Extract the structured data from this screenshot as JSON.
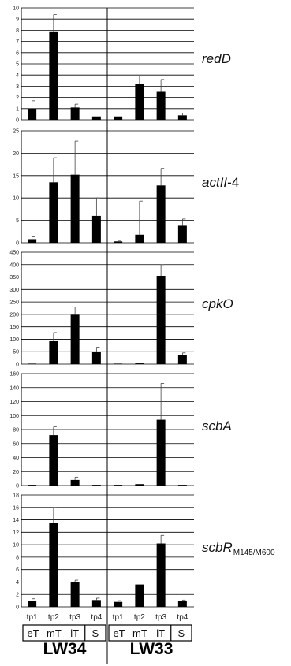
{
  "chart_data": [
    {
      "type": "bar",
      "gene": "redD",
      "ylim": [
        0,
        10
      ],
      "ystep": 1,
      "groups": [
        {
          "strain": "LW34",
          "categories": [
            "tp1",
            "tp2",
            "tp3",
            "tp4"
          ],
          "values": [
            1.0,
            7.9,
            1.1,
            0.3
          ],
          "errors": [
            0.7,
            1.5,
            0.3,
            0.0
          ]
        },
        {
          "strain": "LW33",
          "categories": [
            "tp1",
            "tp2",
            "tp3",
            "tp4"
          ],
          "values": [
            0.3,
            3.2,
            2.5,
            0.4
          ],
          "errors": [
            0.0,
            0.7,
            1.1,
            0.2
          ]
        }
      ]
    },
    {
      "type": "bar",
      "gene": "actII-4",
      "ylim": [
        0,
        25
      ],
      "ystep": 5,
      "groups": [
        {
          "strain": "LW34",
          "categories": [
            "tp1",
            "tp2",
            "tp3",
            "tp4"
          ],
          "values": [
            0.8,
            13.5,
            15.2,
            6.0
          ],
          "errors": [
            0.5,
            5.5,
            7.5,
            4.0
          ]
        },
        {
          "strain": "LW33",
          "categories": [
            "tp1",
            "tp2",
            "tp3",
            "tp4"
          ],
          "values": [
            0.3,
            1.8,
            12.8,
            3.8
          ],
          "errors": [
            0.2,
            7.5,
            3.8,
            1.5
          ]
        }
      ]
    },
    {
      "type": "bar",
      "gene": "cpkO",
      "ylim": [
        0,
        450
      ],
      "ystep": 50,
      "groups": [
        {
          "strain": "LW34",
          "categories": [
            "tp1",
            "tp2",
            "tp3",
            "tp4"
          ],
          "values": [
            2,
            92,
            198,
            50
          ],
          "errors": [
            0,
            35,
            32,
            18
          ]
        },
        {
          "strain": "LW33",
          "categories": [
            "tp1",
            "tp2",
            "tp3",
            "tp4"
          ],
          "values": [
            2,
            3,
            355,
            35
          ],
          "errors": [
            0,
            0,
            45,
            10
          ]
        }
      ]
    },
    {
      "type": "bar",
      "gene": "scbA",
      "ylim": [
        0,
        160
      ],
      "ystep": 20,
      "groups": [
        {
          "strain": "LW34",
          "categories": [
            "tp1",
            "tp2",
            "tp3",
            "tp4"
          ],
          "values": [
            1,
            72,
            8,
            1
          ],
          "errors": [
            0,
            12,
            4,
            0
          ]
        },
        {
          "strain": "LW33",
          "categories": [
            "tp1",
            "tp2",
            "tp3",
            "tp4"
          ],
          "values": [
            1,
            2,
            94,
            1
          ],
          "errors": [
            0,
            0,
            52,
            0
          ]
        }
      ]
    },
    {
      "type": "bar",
      "gene": "scbR",
      "gene_subscript": "M145/M600",
      "ylim": [
        0,
        18
      ],
      "ystep": 2,
      "groups": [
        {
          "strain": "LW34",
          "categories": [
            "tp1",
            "tp2",
            "tp3",
            "tp4"
          ],
          "values": [
            1.0,
            13.5,
            4.0,
            1.1
          ],
          "errors": [
            0.3,
            2.5,
            0.3,
            0.3
          ]
        },
        {
          "strain": "LW33",
          "categories": [
            "tp1",
            "tp2",
            "tp3",
            "tp4"
          ],
          "values": [
            0.8,
            3.6,
            10.2,
            0.9
          ],
          "errors": [
            0.2,
            0.0,
            1.3,
            0.2
          ]
        }
      ]
    }
  ],
  "phases": [
    "eT",
    "mT",
    "lT",
    "S"
  ],
  "strains": [
    "LW34",
    "LW33"
  ]
}
